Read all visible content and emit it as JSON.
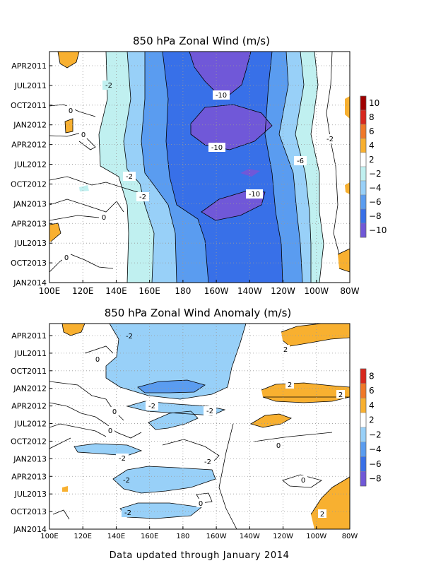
{
  "chart_data": [
    {
      "type": "heatmap",
      "title": "850 hPa Zonal Wind (m/s)",
      "x_ticks": [
        "100E",
        "120E",
        "140E",
        "160E",
        "180",
        "160W",
        "140W",
        "120W",
        "100W",
        "80W"
      ],
      "y_ticks": [
        "APR2011",
        "JUL2011",
        "OCT2011",
        "JAN2012",
        "APR2012",
        "JUL2012",
        "OCT2012",
        "JAN2013",
        "APR2013",
        "JUL2013",
        "OCT2013",
        "JAN2014"
      ],
      "colorbar": {
        "labels": [
          "10",
          "8",
          "6",
          "4",
          "2",
          "−2",
          "−4",
          "−6",
          "−8",
          "−10"
        ],
        "colors": [
          "#a00000",
          "#d8281e",
          "#f07828",
          "#f8b030",
          "#ffffff",
          "#c0f0f0",
          "#98d0f8",
          "#5a9cf0",
          "#3870e8",
          "#7058d8"
        ]
      },
      "contour_labels": [
        "-2",
        "-10",
        "0",
        "0",
        "-10",
        "-6",
        "-2",
        "-2",
        "-10",
        "0",
        "0",
        "-2"
      ],
      "grid": true
    },
    {
      "type": "heatmap",
      "title": "850 hPa Zonal Wind Anomaly (m/s)",
      "x_ticks": [
        "100E",
        "120E",
        "140E",
        "160E",
        "180",
        "160W",
        "140W",
        "120W",
        "100W",
        "80W"
      ],
      "y_ticks": [
        "APR2011",
        "JUL2011",
        "OCT2011",
        "JAN2012",
        "APR2012",
        "JUL2012",
        "OCT2012",
        "JAN2013",
        "APR2013",
        "JUL2013",
        "OCT2013",
        "JAN2014"
      ],
      "colorbar": {
        "labels": [
          "8",
          "6",
          "4",
          "2",
          "−2",
          "−4",
          "−6",
          "−8"
        ],
        "colors": [
          "#d8281e",
          "#f07828",
          "#f8b030",
          "#ffffff",
          "#98d0f8",
          "#5a9cf0",
          "#3870e8",
          "#7058d8"
        ]
      },
      "contour_labels": [
        "-2",
        "0",
        "2",
        "-2",
        "-2",
        "2",
        "2",
        "0",
        "0",
        "0",
        "-2",
        "-2",
        "-2",
        "0",
        "0",
        "-2",
        "2"
      ],
      "grid": true
    }
  ],
  "footer": "Data updated through January 2014"
}
